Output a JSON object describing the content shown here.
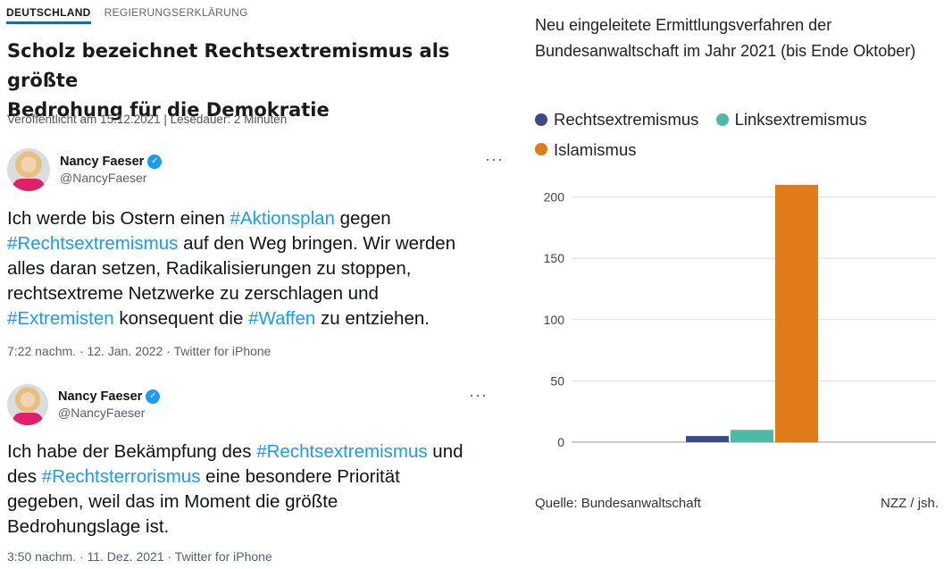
{
  "article": {
    "tags": [
      "DEUTSCHLAND",
      "REGIERUNGSERKLÄRUNG"
    ],
    "headline_line1": "Scholz bezeichnet Rechtsextremismus als größte",
    "headline_line2": "Bedrohung für die Demokratie",
    "meta": "Veröffentlicht am 15.12.2021 | Lesedauer: 2 Minuten"
  },
  "tweets": [
    {
      "name": "Nancy Faeser",
      "handle": "@NancyFaeser",
      "more_label": "···",
      "text": [
        {
          "t": "Ich werde bis Ostern einen "
        },
        {
          "t": "#Aktionsplan",
          "tag": true
        },
        {
          "t": " gegen\n"
        },
        {
          "t": "#Rechtsextremismus",
          "tag": true
        },
        {
          "t": " auf den Weg bringen. Wir werden\nalles daran setzen, Radikalisierungen zu stoppen,\nrechtsextreme Netzwerke zu zerschlagen und\n"
        },
        {
          "t": "#Extremisten",
          "tag": true
        },
        {
          "t": " konsequent die "
        },
        {
          "t": "#Waffen",
          "tag": true
        },
        {
          "t": " zu entziehen."
        }
      ],
      "meta": "7:22 nachm. · 12. Jan. 2022 · Twitter for iPhone"
    },
    {
      "name": "Nancy Faeser",
      "handle": "@NancyFaeser",
      "more_label": "···",
      "text": [
        {
          "t": "Ich habe der Bekämpfung des "
        },
        {
          "t": "#Rechtsextremismus",
          "tag": true
        },
        {
          "t": " und\ndes "
        },
        {
          "t": "#Rechtsterrorismus",
          "tag": true
        },
        {
          "t": " eine besondere Priorität\ngegeben, weil das im Moment die größte\nBedrohungslage ist."
        }
      ],
      "meta": "3:50 nachm. · 11. Dez. 2021 · Twitter for iPhone"
    }
  ],
  "chart_data": {
    "type": "bar",
    "title": "Neu eingeleitete Ermittlungsverfahren der Bundesanwaltschaft im Jahr 2021 (bis Ende Oktober)",
    "series": [
      {
        "name": "Rechtsextremismus",
        "values": [
          5
        ],
        "color": "#3b4a87"
      },
      {
        "name": "Linksextremismus",
        "values": [
          10
        ],
        "color": "#4dbaa8"
      },
      {
        "name": "Islamismus",
        "values": [
          210
        ],
        "color": "#e07b1a"
      }
    ],
    "yticks": [
      0,
      50,
      100,
      150,
      200
    ],
    "ylim": [
      0,
      215
    ],
    "grid": true,
    "legend_position": "top",
    "source": "Quelle: Bundesanwaltschaft",
    "credit": "NZZ / jsh."
  }
}
